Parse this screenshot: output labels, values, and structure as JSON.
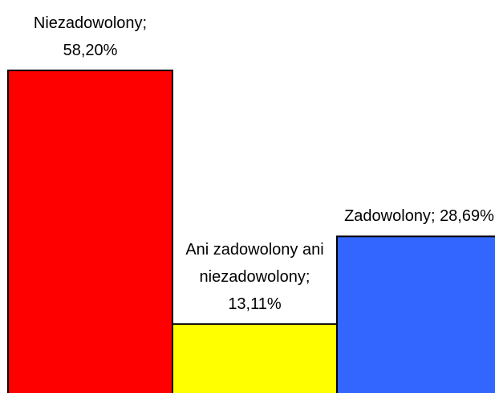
{
  "chart_data": {
    "type": "bar",
    "categories": [
      "Niezadowolony",
      "Ani zadowolony ani niezadowolony",
      "Zadowolony"
    ],
    "values": [
      58.2,
      13.11,
      28.69
    ],
    "value_labels": [
      "58,20%",
      "13,11%",
      "28,69%"
    ],
    "label_separator": ";",
    "colors": [
      "#ff0000",
      "#ffff00",
      "#3366ff"
    ],
    "ylim": [
      0,
      70
    ]
  }
}
